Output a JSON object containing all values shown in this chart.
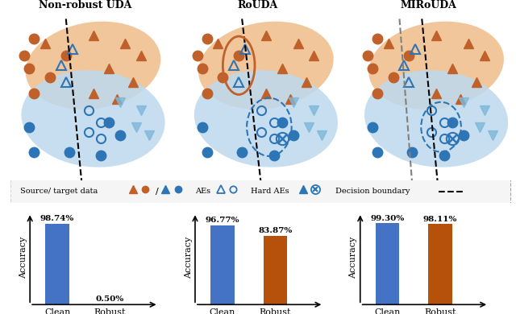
{
  "bar_data": [
    {
      "title": "Non-robust UDA",
      "clean": 98.74,
      "robust": 0.5,
      "clean_color": "#4472C4",
      "robust_color": "#4472C4"
    },
    {
      "title": "RoUDA",
      "clean": 96.77,
      "robust": 83.87,
      "clean_color": "#4472C4",
      "robust_color": "#B5510A"
    },
    {
      "title": "MIRoUDA",
      "clean": 99.3,
      "robust": 98.11,
      "clean_color": "#4472C4",
      "robust_color": "#B5510A"
    }
  ],
  "panel_titles": [
    "Non-robust UDA",
    "RoUDA",
    "MIRoUDA"
  ],
  "orange_blob_color": "#F0C090",
  "blue_blob_color": "#BDD9EF",
  "source_orange_fill": "#C0602A",
  "source_blue_fill": "#2E75B6",
  "background_color": "#ffffff"
}
